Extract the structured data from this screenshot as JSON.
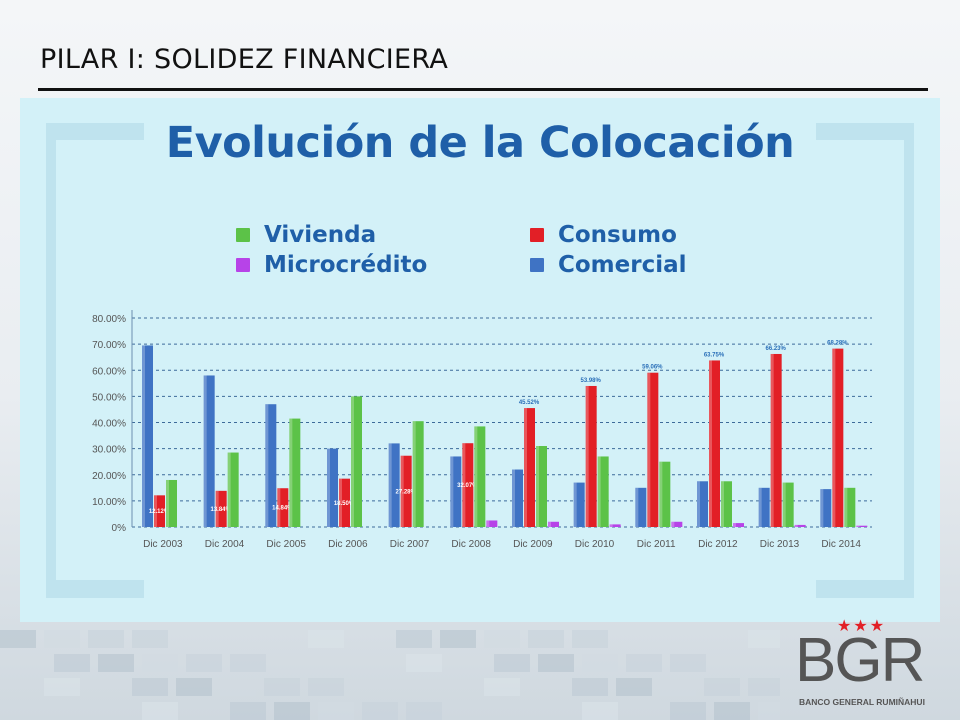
{
  "slide": {
    "title": "PILAR I: SOLIDEZ FINANCIERA"
  },
  "colors": {
    "vivienda": "#5cc248",
    "consumo": "#e21f26",
    "microcredito": "#b743e8",
    "comercial": "#3f73c4",
    "heading": "#1f5fa8",
    "panel": "#d3f1f8"
  },
  "logo": {
    "mark": "BGR",
    "name": "BANCO GENERAL RUMIÑAHUI",
    "stars": "★★★"
  },
  "chart_data": {
    "type": "bar",
    "title": "Evolución de la Colocación",
    "categories": [
      "Dic 2003",
      "Dic 2004",
      "Dic 2005",
      "Dic 2006",
      "Dic 2007",
      "Dic 2008",
      "Dic 2009",
      "Dic 2010",
      "Dic 2011",
      "Dic 2012",
      "Dic 2013",
      "Dic 2014"
    ],
    "series": [
      {
        "name": "Comercial",
        "color_key": "comercial",
        "values": [
          69.5,
          58.0,
          47.0,
          30.0,
          32.0,
          27.0,
          22.0,
          17.0,
          15.0,
          17.5,
          15.0,
          14.5
        ]
      },
      {
        "name": "Consumo",
        "color_key": "consumo",
        "values": [
          12.12,
          13.84,
          14.84,
          18.5,
          27.28,
          32.07,
          45.52,
          53.98,
          59.06,
          63.75,
          66.23,
          68.28
        ],
        "labels": [
          "12.12%",
          "13.84%",
          "14.84%",
          "18.50%",
          "27.28%",
          "32.07%",
          "45.52%",
          "53.98%",
          "59.06%",
          "63.75%",
          "66.23%",
          "68.28%"
        ]
      },
      {
        "name": "Vivienda",
        "color_key": "vivienda",
        "values": [
          18.0,
          28.5,
          41.5,
          50.0,
          40.5,
          38.5,
          31.0,
          27.0,
          25.0,
          17.5,
          17.0,
          15.0
        ]
      },
      {
        "name": "Microcrédito",
        "color_key": "microcredito",
        "values": [
          0,
          0,
          0,
          0,
          0,
          2.5,
          2.0,
          1.0,
          2.0,
          1.5,
          0.8,
          0.5
        ]
      }
    ],
    "legend": [
      {
        "name": "Vivienda",
        "color_key": "vivienda"
      },
      {
        "name": "Consumo",
        "color_key": "consumo"
      },
      {
        "name": "Microcrédito",
        "color_key": "microcredito"
      },
      {
        "name": "Comercial",
        "color_key": "comercial"
      }
    ],
    "yticks": [
      "0%",
      "10.00%",
      "20.00%",
      "30.00%",
      "40.00%",
      "50.00%",
      "60.00%",
      "70.00%",
      "80.00%"
    ],
    "ylim": [
      0,
      80
    ],
    "grid": true,
    "legend_position": "top"
  }
}
